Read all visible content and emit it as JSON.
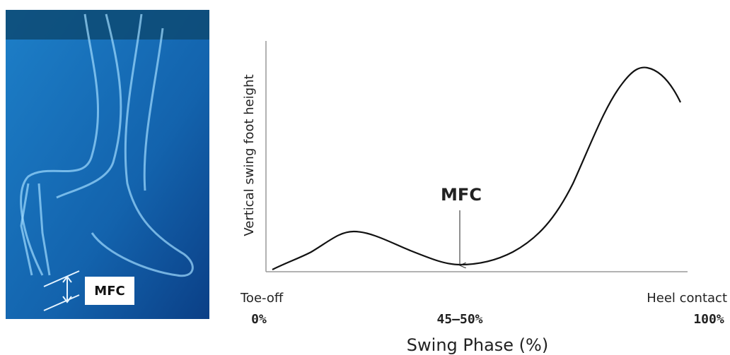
{
  "figure": {
    "image_label": "MFC",
    "chart": {
      "y_label": "Vertical swing foot height",
      "annotation": "MFC",
      "x_start_event": "Toe-off",
      "x_end_event": "Heel contact",
      "x_start_pct": "0%",
      "x_mid_pct": "45–50%",
      "x_end_pct": "100%",
      "x_label": "Swing Phase (%)"
    }
  }
}
